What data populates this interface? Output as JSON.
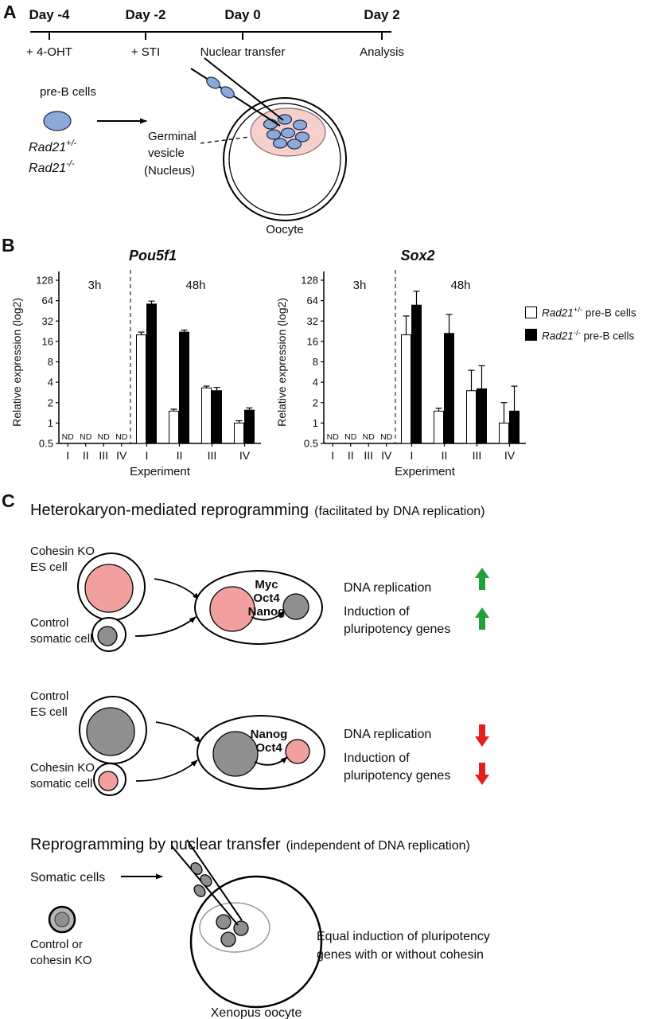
{
  "colors": {
    "blue_cell": "#8ca9d8",
    "pink_nucleus": "#f29f9f",
    "pink_gv": "#f6d0cd",
    "gray_nucleus": "#8f8f8f",
    "green": "#22a038",
    "red": "#e41d1d"
  },
  "panelA": {
    "label": "A",
    "timeline": {
      "points": [
        {
          "day": "Day -4",
          "event": "+ 4-OHT"
        },
        {
          "day": "Day -2",
          "event": "+ STI"
        },
        {
          "day": "Day 0",
          "event": "Nuclear transfer"
        },
        {
          "day": "Day 2",
          "event": "Analysis"
        }
      ]
    },
    "pre_b_label": "pre-B cells",
    "genotypes": [
      {
        "gene": "Rad21",
        "sup": "+/-"
      },
      {
        "gene": "Rad21",
        "sup": "-/-"
      }
    ],
    "gv_lines": [
      "Germinal",
      "vesicle",
      "(Nucleus)"
    ],
    "oocyte_label": "Oocyte"
  },
  "panelB": {
    "label": "B",
    "legend": [
      {
        "gene": "Rad21",
        "sup": "+/-",
        "rest": " pre-B cells",
        "fill": "#ffffff"
      },
      {
        "gene": "Rad21",
        "sup": "-/-",
        "rest": " pre-B cells",
        "fill": "#000000"
      }
    ]
  },
  "chart_data": [
    {
      "type": "bar",
      "title": "Pou5f1",
      "ylabel": "Relative expression (log2)",
      "xlabel": "Experiment",
      "scale": "log2",
      "ylim": [
        0.5,
        128
      ],
      "yticks": [
        "128",
        "64",
        "32",
        "16",
        "8",
        "4",
        "2",
        "1",
        "0.5"
      ],
      "nd_text": "ND",
      "sections": [
        {
          "label": "3h",
          "categories": [
            "I",
            "II",
            "III",
            "IV"
          ],
          "nd": true
        },
        {
          "label": "48h",
          "categories": [
            "I",
            "II",
            "III",
            "IV"
          ],
          "nd": false
        }
      ],
      "series": [
        {
          "name": "Rad21+/- pre-B cells",
          "fill": "#ffffff",
          "values": [
            20,
            1.5,
            3.3,
            1.0
          ],
          "err_up": [
            2,
            0.1,
            0.2,
            0.08
          ]
        },
        {
          "name": "Rad21-/- pre-B cells",
          "fill": "#000000",
          "values": [
            57,
            22,
            3.0,
            1.55
          ],
          "err_up": [
            6,
            1.5,
            0.35,
            0.12
          ]
        }
      ]
    },
    {
      "type": "bar",
      "title": "Sox2",
      "ylabel": "Relative expression (log2)",
      "xlabel": "Experiment",
      "scale": "log2",
      "ylim": [
        0.5,
        128
      ],
      "yticks": [
        "128",
        "64",
        "32",
        "16",
        "8",
        "4",
        "2",
        "1",
        "0.5"
      ],
      "nd_text": "ND",
      "sections": [
        {
          "label": "3h",
          "categories": [
            "I",
            "II",
            "III",
            "IV"
          ],
          "nd": true
        },
        {
          "label": "48h",
          "categories": [
            "I",
            "II",
            "III",
            "IV"
          ],
          "nd": false
        }
      ],
      "series": [
        {
          "name": "Rad21+/- pre-B cells",
          "fill": "#ffffff",
          "values": [
            20,
            1.5,
            3.0,
            1.0
          ],
          "err_up": [
            18,
            0.15,
            3.0,
            1.0
          ]
        },
        {
          "name": "Rad21-/- pre-B cells",
          "fill": "#000000",
          "values": [
            55,
            21,
            3.2,
            1.5
          ],
          "err_up": [
            33,
            19,
            3.8,
            2.0
          ]
        }
      ]
    }
  ],
  "panelC": {
    "label": "C",
    "het_title": "Heterokaryon-mediated reprogramming",
    "het_subtitle": "(facilitated by DNA replication)",
    "rows": [
      {
        "big_cell_lines": [
          "Cohesin KO",
          "ES cell"
        ],
        "small_cell_lines": [
          "Control",
          "somatic cell"
        ],
        "big_nucleus_color": "pink",
        "small_nucleus_color": "gray",
        "factors": [
          "Myc",
          "Oct4",
          "Nanog"
        ],
        "outcome1": "DNA replication",
        "outcome2_lines": [
          "Induction of",
          "pluripotency genes"
        ],
        "direction": "up"
      },
      {
        "big_cell_lines": [
          "Control",
          "ES cell"
        ],
        "small_cell_lines": [
          "Cohesin KO",
          "somatic cell"
        ],
        "big_nucleus_color": "gray",
        "small_nucleus_color": "pink",
        "factors": [
          "Nanog",
          "Oct4"
        ],
        "outcome1": "DNA replication",
        "outcome2_lines": [
          "Induction of",
          "pluripotency genes"
        ],
        "direction": "down"
      }
    ],
    "nt_title": "Reprogramming by nuclear transfer",
    "nt_subtitle": "(independent of DNA replication)",
    "somatic_cells_label": "Somatic cells",
    "donor_lines": [
      "Control or",
      "cohesin KO"
    ],
    "equal_lines": [
      "Equal induction of pluripotency",
      "genes with or without cohesin"
    ],
    "oocyte_label": "Xenopus oocyte"
  }
}
